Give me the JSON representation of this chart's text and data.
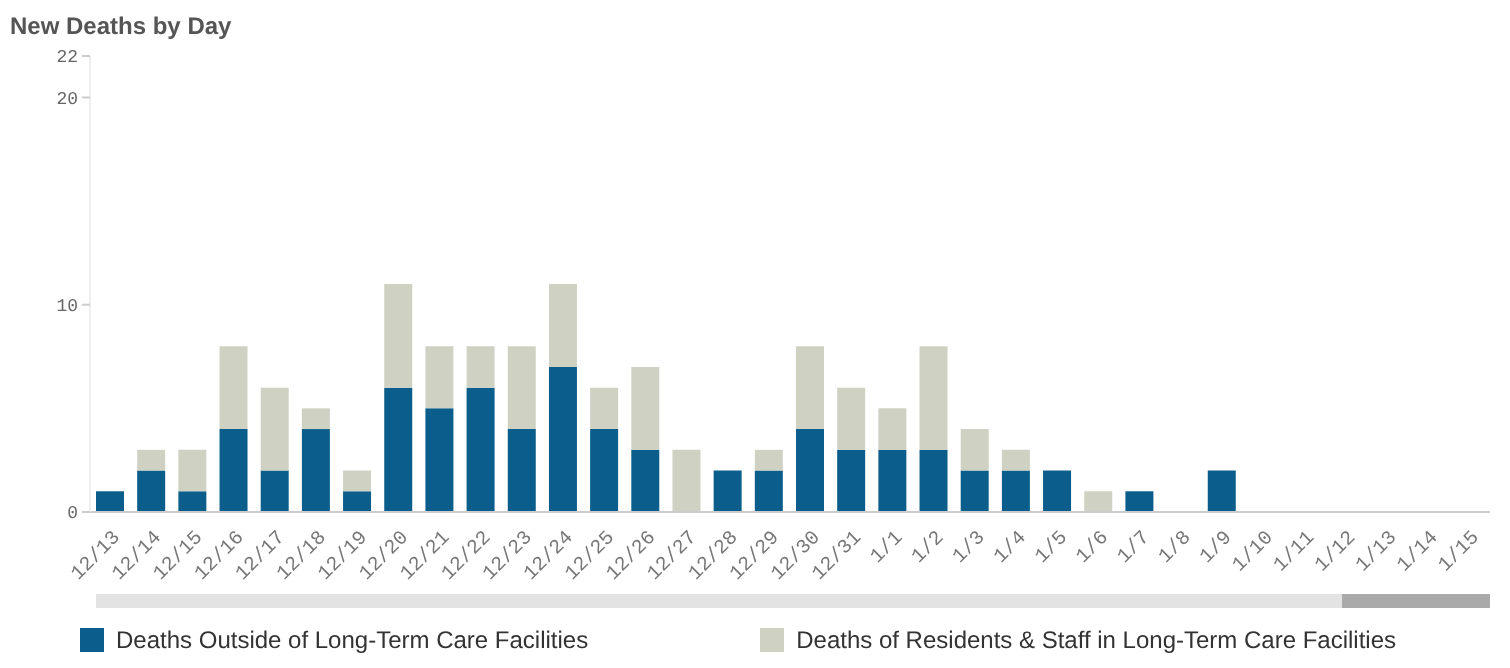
{
  "chart_data": {
    "type": "bar",
    "title": "New Deaths by Day",
    "categories": [
      "12/13",
      "12/14",
      "12/15",
      "12/16",
      "12/17",
      "12/18",
      "12/19",
      "12/20",
      "12/21",
      "12/22",
      "12/23",
      "12/24",
      "12/25",
      "12/26",
      "12/27",
      "12/28",
      "12/29",
      "12/30",
      "12/31",
      "1/1",
      "1/2",
      "1/3",
      "1/4",
      "1/5",
      "1/6",
      "1/7",
      "1/8",
      "1/9",
      "1/10",
      "1/11",
      "1/12",
      "1/13",
      "1/14",
      "1/15"
    ],
    "series": [
      {
        "name": "Deaths Outside of Long-Term Care Facilities",
        "color": "#0b5e8c",
        "values": [
          1,
          2,
          1,
          4,
          2,
          4,
          1,
          6,
          5,
          6,
          4,
          7,
          4,
          3,
          0,
          2,
          2,
          4,
          3,
          3,
          3,
          2,
          2,
          2,
          0,
          1,
          0,
          2,
          0,
          0,
          0,
          0,
          0,
          0
        ]
      },
      {
        "name": "Deaths of Residents & Staff in Long-Term Care Facilities",
        "color": "#cfd1c2",
        "values": [
          0,
          1,
          2,
          4,
          4,
          1,
          1,
          5,
          3,
          2,
          4,
          4,
          2,
          4,
          3,
          0,
          1,
          4,
          3,
          2,
          5,
          2,
          1,
          0,
          1,
          0,
          0,
          0,
          0,
          0,
          0,
          0,
          0,
          0
        ]
      }
    ],
    "stacked": true,
    "ylim": [
      0,
      22
    ],
    "yticks": [
      0,
      10,
      20,
      22
    ],
    "grid": false,
    "legend": "bottom"
  }
}
